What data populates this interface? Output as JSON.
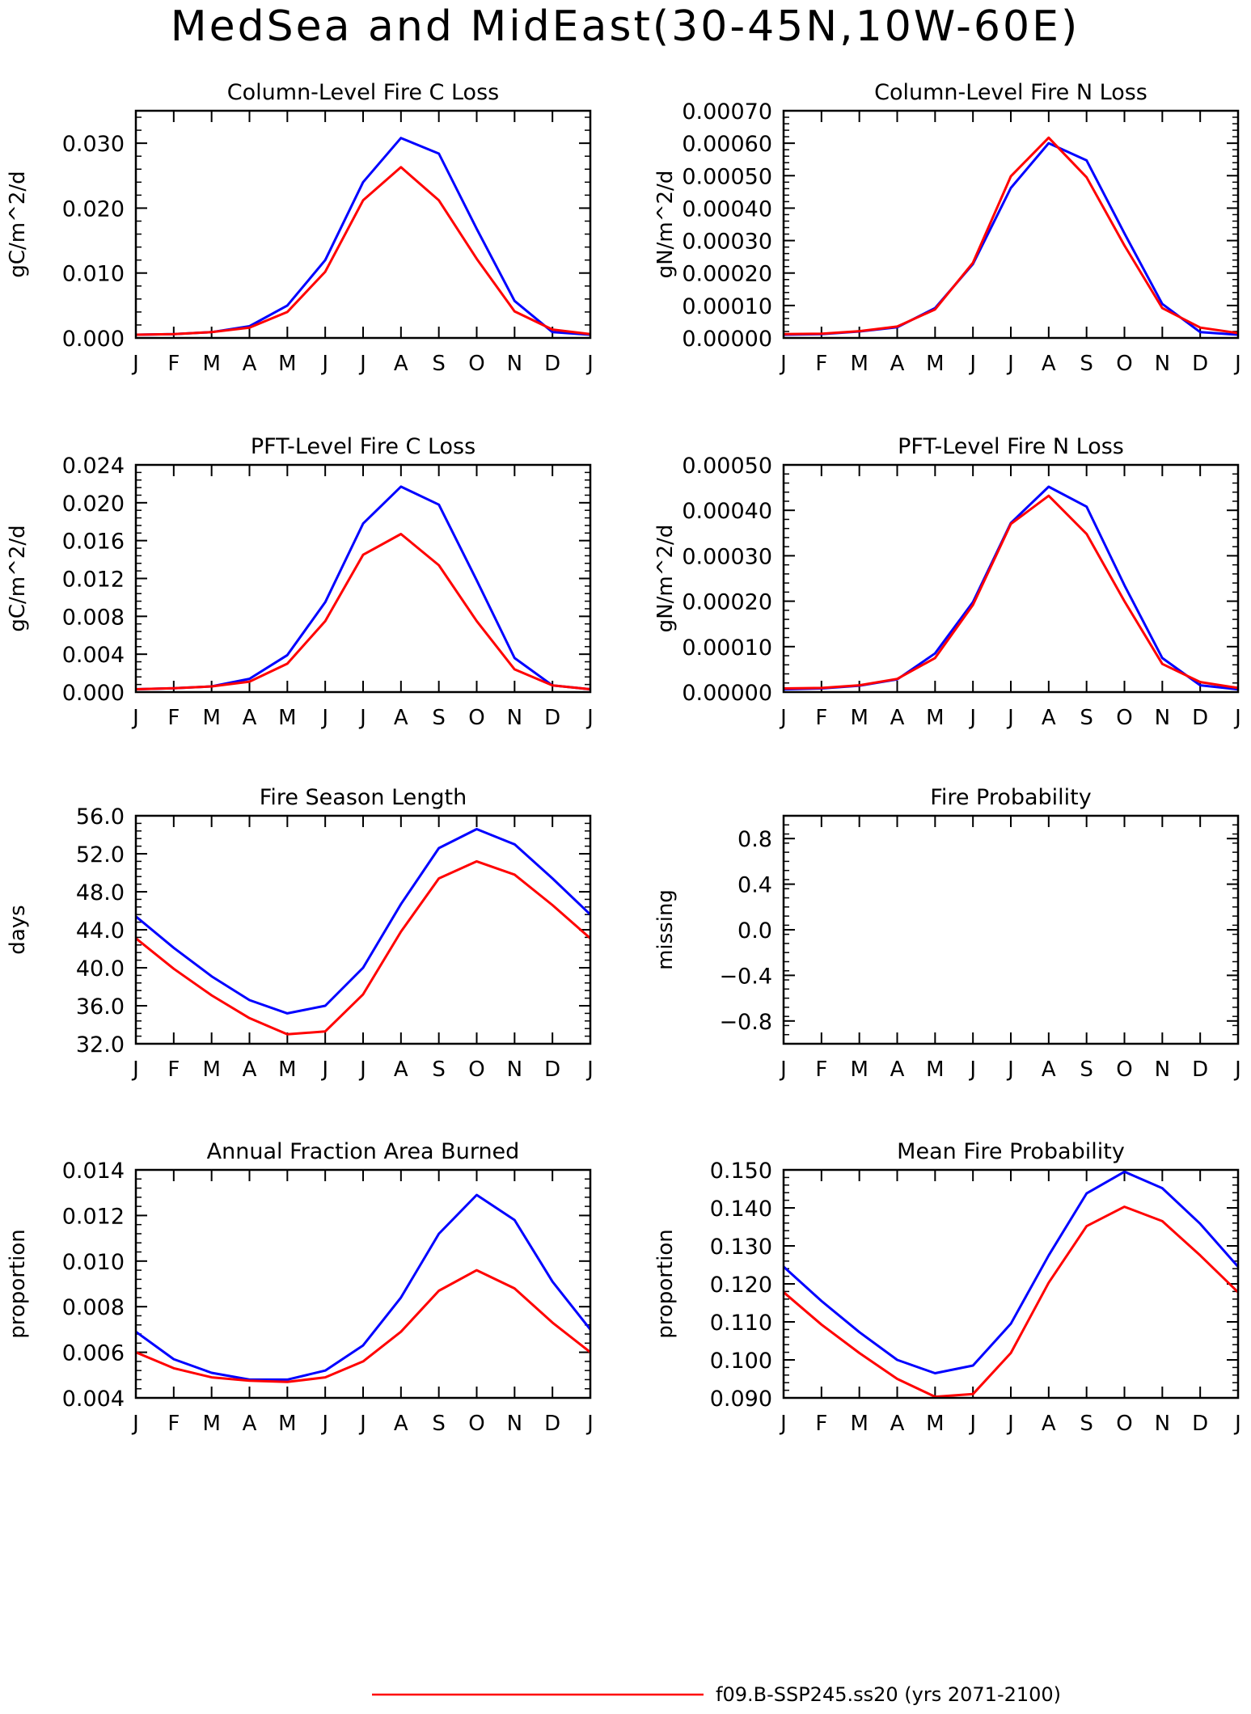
{
  "page": {
    "title": "MedSea and MidEast(30-45N,10W-60E)",
    "legend": [
      {
        "label": "f09.B-SSP245.ss20 (yrs 2071-2100)",
        "color": "#ff0000"
      }
    ]
  },
  "chart_data": [
    {
      "type": "line",
      "title": "Column-Level Fire C Loss",
      "ylabel": "gC/m^2/d",
      "xlabel": "",
      "categories": [
        "J",
        "F",
        "M",
        "A",
        "M",
        "J",
        "J",
        "A",
        "S",
        "O",
        "N",
        "D",
        "J"
      ],
      "ylim": [
        0,
        0.035
      ],
      "yticks": [
        0,
        0.01,
        0.02,
        0.03
      ],
      "ytick_labels": [
        "0.000",
        "0.010",
        "0.020",
        "0.030"
      ],
      "series": [
        {
          "color": "#0000ff",
          "values": [
            0.0005,
            0.0006,
            0.0009,
            0.0018,
            0.005,
            0.012,
            0.024,
            0.0308,
            0.0284,
            0.0168,
            0.0057,
            0.0009,
            0.0005
          ]
        },
        {
          "color": "#ff0000",
          "values": [
            0.0005,
            0.0006,
            0.0009,
            0.0016,
            0.004,
            0.0102,
            0.0212,
            0.0263,
            0.0212,
            0.0122,
            0.0041,
            0.0013,
            0.0006
          ]
        }
      ]
    },
    {
      "type": "line",
      "title": "Column-Level Fire N Loss",
      "ylabel": "gN/m^2/d",
      "xlabel": "",
      "categories": [
        "J",
        "F",
        "M",
        "A",
        "M",
        "J",
        "J",
        "A",
        "S",
        "O",
        "N",
        "D",
        "J"
      ],
      "ylim": [
        0,
        0.0007
      ],
      "yticks": [
        0,
        0.0001,
        0.0002,
        0.0003,
        0.0004,
        0.0005,
        0.0006,
        0.0007
      ],
      "ytick_labels": [
        "0.00000",
        "0.00010",
        "0.00020",
        "0.00030",
        "0.00040",
        "0.00050",
        "0.00060",
        "0.00070"
      ],
      "series": [
        {
          "color": "#0000ff",
          "values": [
            1e-05,
            1.2e-05,
            2e-05,
            3.3e-05,
            9.2e-05,
            0.000228,
            0.000462,
            0.0006,
            0.000547,
            0.000322,
            0.000105,
            1.8e-05,
            1e-05
          ]
        },
        {
          "color": "#ff0000",
          "values": [
            1.2e-05,
            1.3e-05,
            2.1e-05,
            3.5e-05,
            8.8e-05,
            0.000232,
            0.000498,
            0.000617,
            0.000495,
            0.000285,
            9.2e-05,
            3.2e-05,
            1.5e-05
          ]
        }
      ]
    },
    {
      "type": "line",
      "title": "PFT-Level Fire C Loss",
      "ylabel": "gC/m^2/d",
      "xlabel": "",
      "categories": [
        "J",
        "F",
        "M",
        "A",
        "M",
        "J",
        "J",
        "A",
        "S",
        "O",
        "N",
        "D",
        "J"
      ],
      "ylim": [
        0,
        0.024
      ],
      "yticks": [
        0,
        0.004,
        0.008,
        0.012,
        0.016,
        0.02,
        0.024
      ],
      "ytick_labels": [
        "0.000",
        "0.004",
        "0.008",
        "0.012",
        "0.016",
        "0.020",
        "0.024"
      ],
      "series": [
        {
          "color": "#0000ff",
          "values": [
            0.0003,
            0.0004,
            0.0006,
            0.0014,
            0.0039,
            0.0095,
            0.0178,
            0.0217,
            0.0198,
            0.0118,
            0.0036,
            0.0007,
            0.0003
          ]
        },
        {
          "color": "#ff0000",
          "values": [
            0.0003,
            0.0004,
            0.0006,
            0.0011,
            0.003,
            0.0075,
            0.0145,
            0.0167,
            0.0134,
            0.0075,
            0.0024,
            0.0007,
            0.0003
          ]
        }
      ]
    },
    {
      "type": "line",
      "title": "PFT-Level Fire N Loss",
      "ylabel": "gN/m^2/d",
      "xlabel": "",
      "categories": [
        "J",
        "F",
        "M",
        "A",
        "M",
        "J",
        "J",
        "A",
        "S",
        "O",
        "N",
        "D",
        "J"
      ],
      "ylim": [
        0,
        0.0005
      ],
      "yticks": [
        0,
        0.0001,
        0.0002,
        0.0003,
        0.0004,
        0.0005
      ],
      "ytick_labels": [
        "0.00000",
        "0.00010",
        "0.00020",
        "0.00030",
        "0.00040",
        "0.00050"
      ],
      "series": [
        {
          "color": "#0000ff",
          "values": [
            6e-06,
            8e-06,
            1.4e-05,
            2.8e-05,
            8.5e-05,
            0.000198,
            0.000372,
            0.000452,
            0.000408,
            0.000235,
            7.5e-05,
            1.5e-05,
            6e-06
          ]
        },
        {
          "color": "#ff0000",
          "values": [
            8e-06,
            9e-06,
            1.5e-05,
            2.9e-05,
            7.5e-05,
            0.000192,
            0.00037,
            0.000432,
            0.000348,
            0.0002,
            6.2e-05,
            2.2e-05,
            9e-06
          ]
        }
      ]
    },
    {
      "type": "line",
      "title": "Fire Season Length",
      "ylabel": "days",
      "xlabel": "",
      "categories": [
        "J",
        "F",
        "M",
        "A",
        "M",
        "J",
        "J",
        "A",
        "S",
        "O",
        "N",
        "D",
        "J"
      ],
      "ylim": [
        32,
        56
      ],
      "yticks": [
        32,
        36,
        40,
        44,
        48,
        52,
        56
      ],
      "ytick_labels": [
        "32.0",
        "36.0",
        "40.0",
        "44.0",
        "48.0",
        "52.0",
        "56.0"
      ],
      "series": [
        {
          "color": "#0000ff",
          "values": [
            45.4,
            42.1,
            39.1,
            36.6,
            35.2,
            36.0,
            40.0,
            46.7,
            52.6,
            54.6,
            53.0,
            49.4,
            45.6
          ]
        },
        {
          "color": "#ff0000",
          "values": [
            43.1,
            39.9,
            37.1,
            34.7,
            33.0,
            33.3,
            37.2,
            43.8,
            49.4,
            51.2,
            49.8,
            46.6,
            43.1
          ]
        }
      ]
    },
    {
      "type": "line",
      "title": "Fire Probability",
      "ylabel": "missing",
      "xlabel": "",
      "categories": [
        "J",
        "F",
        "M",
        "A",
        "M",
        "J",
        "J",
        "A",
        "S",
        "O",
        "N",
        "D",
        "J"
      ],
      "ylim": [
        -1,
        1
      ],
      "yticks": [
        -0.8,
        -0.4,
        0,
        0.4,
        0.8
      ],
      "ytick_labels": [
        "−0.8",
        "−0.4",
        "0.0",
        "0.4",
        "0.8"
      ],
      "series": []
    },
    {
      "type": "line",
      "title": "Annual Fraction Area Burned",
      "ylabel": "proportion",
      "xlabel": "",
      "categories": [
        "J",
        "F",
        "M",
        "A",
        "M",
        "J",
        "J",
        "A",
        "S",
        "O",
        "N",
        "D",
        "J"
      ],
      "ylim": [
        0.004,
        0.014
      ],
      "yticks": [
        0.004,
        0.006,
        0.008,
        0.01,
        0.012,
        0.014
      ],
      "ytick_labels": [
        "0.004",
        "0.006",
        "0.008",
        "0.010",
        "0.012",
        "0.014"
      ],
      "series": [
        {
          "color": "#0000ff",
          "values": [
            0.0069,
            0.0057,
            0.0051,
            0.0048,
            0.0048,
            0.0052,
            0.0063,
            0.0084,
            0.0112,
            0.0129,
            0.0118,
            0.0091,
            0.007
          ]
        },
        {
          "color": "#ff0000",
          "values": [
            0.006,
            0.0053,
            0.0049,
            0.00475,
            0.0047,
            0.0049,
            0.0056,
            0.0069,
            0.0087,
            0.0096,
            0.0088,
            0.0073,
            0.006
          ]
        }
      ]
    },
    {
      "type": "line",
      "title": "Mean Fire Probability",
      "ylabel": "proportion",
      "xlabel": "",
      "categories": [
        "J",
        "F",
        "M",
        "A",
        "M",
        "J",
        "J",
        "A",
        "S",
        "O",
        "N",
        "D",
        "J"
      ],
      "ylim": [
        0.09,
        0.15
      ],
      "yticks": [
        0.09,
        0.1,
        0.11,
        0.12,
        0.13,
        0.14,
        0.15
      ],
      "ytick_labels": [
        "0.090",
        "0.100",
        "0.110",
        "0.120",
        "0.130",
        "0.140",
        "0.150"
      ],
      "series": [
        {
          "color": "#0000ff",
          "values": [
            0.1245,
            0.1155,
            0.1073,
            0.1,
            0.0965,
            0.0985,
            0.1095,
            0.1275,
            0.1438,
            0.1495,
            0.1452,
            0.1358,
            0.1245
          ]
        },
        {
          "color": "#ff0000",
          "values": [
            0.1178,
            0.1093,
            0.1018,
            0.095,
            0.0903,
            0.091,
            0.1018,
            0.1203,
            0.1352,
            0.1403,
            0.1365,
            0.1275,
            0.1178
          ]
        }
      ]
    }
  ]
}
